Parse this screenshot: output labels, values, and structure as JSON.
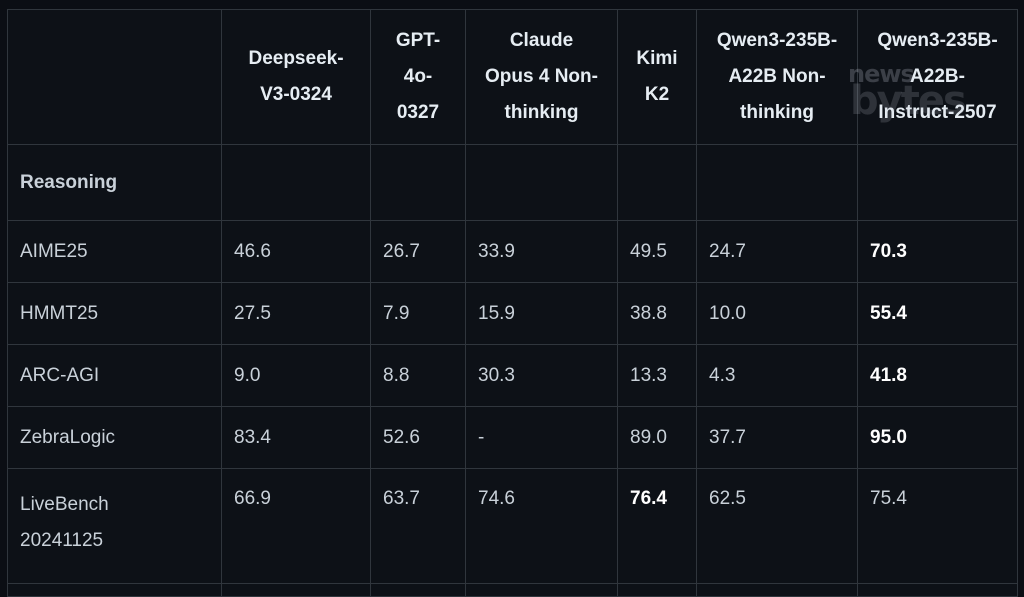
{
  "chart_data": {
    "type": "table",
    "columns": [
      "",
      "Deepseek-V3-0324",
      "GPT-4o-0327",
      "Claude Opus 4 Non-thinking",
      "Kimi K2",
      "Qwen3-235B-A22B Non-thinking",
      "Qwen3-235B-A22B-Instruct-2507"
    ],
    "header_lines": [
      [
        ""
      ],
      [
        "Deepseek-",
        "V3-0324"
      ],
      [
        "GPT-",
        "4o-",
        "0327"
      ],
      [
        "Claude",
        "Opus 4 Non-",
        "thinking"
      ],
      [
        "Kimi",
        "K2"
      ],
      [
        "Qwen3-235B-",
        "A22B Non-",
        "thinking"
      ],
      [
        "Qwen3-235B-",
        "A22B-",
        "Instruct-2507"
      ]
    ],
    "section": "Reasoning",
    "rows": [
      {
        "label": "AIME25",
        "label_lines": [
          "AIME25"
        ],
        "values": [
          "46.6",
          "26.7",
          "33.9",
          "49.5",
          "24.7",
          "70.3"
        ],
        "bold": [
          5
        ]
      },
      {
        "label": "HMMT25",
        "label_lines": [
          "HMMT25"
        ],
        "values": [
          "27.5",
          "7.9",
          "15.9",
          "38.8",
          "10.0",
          "55.4"
        ],
        "bold": [
          5
        ]
      },
      {
        "label": "ARC-AGI",
        "label_lines": [
          "ARC-AGI"
        ],
        "values": [
          "9.0",
          "8.8",
          "30.3",
          "13.3",
          "4.3",
          "41.8"
        ],
        "bold": [
          5
        ]
      },
      {
        "label": "ZebraLogic",
        "label_lines": [
          "ZebraLogic"
        ],
        "values": [
          "83.4",
          "52.6",
          "-",
          "89.0",
          "37.7",
          "95.0"
        ],
        "bold": [
          5
        ]
      },
      {
        "label": "LiveBench 20241125",
        "label_lines": [
          "LiveBench",
          "20241125"
        ],
        "values": [
          "66.9",
          "63.7",
          "74.6",
          "76.4",
          "62.5",
          "75.4"
        ],
        "bold": [
          3
        ]
      }
    ]
  },
  "watermark": {
    "top": "news",
    "bottom": "bytes"
  }
}
